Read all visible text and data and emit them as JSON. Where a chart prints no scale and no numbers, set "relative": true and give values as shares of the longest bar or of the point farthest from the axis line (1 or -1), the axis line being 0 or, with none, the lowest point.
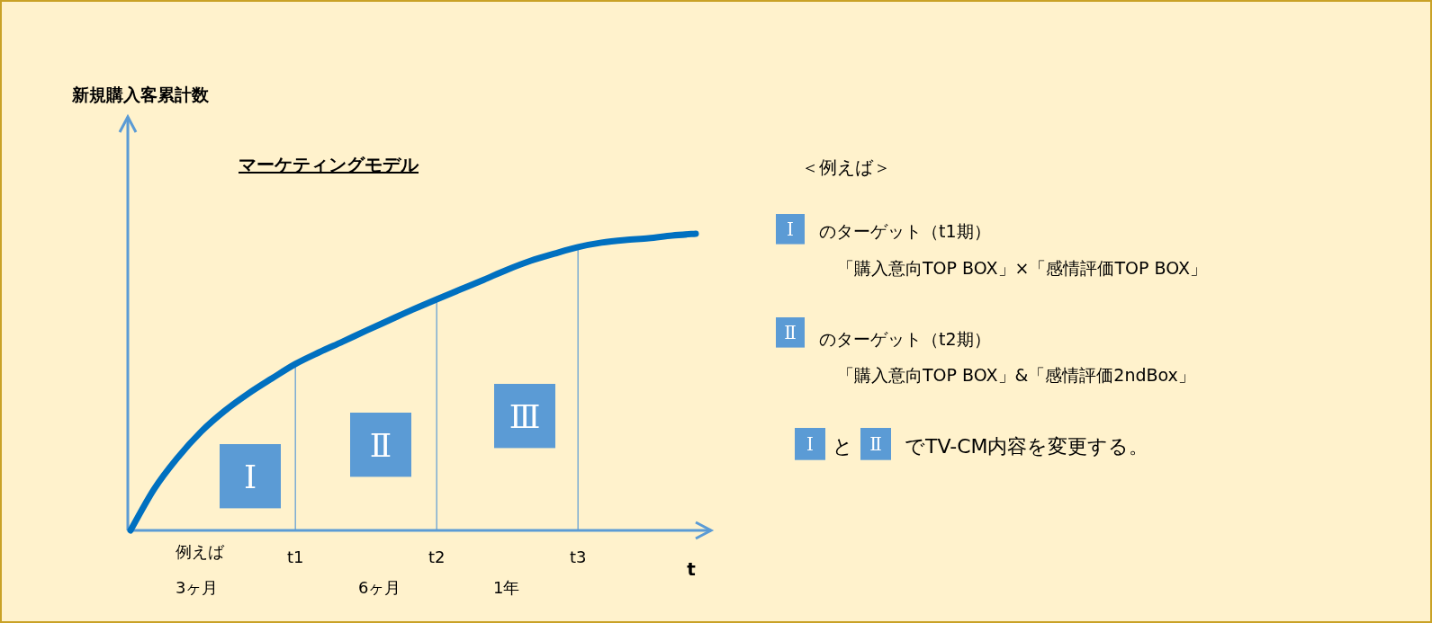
{
  "chart_data": {
    "type": "line",
    "relative": true,
    "title": "マーケティングモデル",
    "xlabel": "t",
    "categories": [
      null,
      null,
      null,
      null,
      null,
      null,
      null,
      "t1",
      null,
      null,
      null,
      null,
      null,
      "t2",
      null,
      null,
      null,
      null,
      null,
      "t3",
      null,
      null,
      null,
      null,
      null
    ],
    "series": [
      {
        "color": "#0070c0",
        "values": [
          0,
          0.139,
          0.245,
          0.333,
          0.403,
          0.461,
          0.512,
          0.561,
          0.6,
          0.636,
          0.673,
          0.709,
          0.745,
          0.779,
          0.812,
          0.845,
          0.879,
          0.909,
          0.933,
          0.955,
          0.97,
          0.979,
          0.985,
          0.994,
          1
        ]
      }
    ],
    "ref_lines": [
      {
        "axis": "x",
        "value": "t1",
        "color": "#5b9bd5"
      },
      {
        "axis": "x",
        "value": "t2",
        "color": "#5b9bd5"
      },
      {
        "axis": "x",
        "value": "t3",
        "color": "#5b9bd5"
      }
    ],
    "annotations": [
      "Ⅰ",
      "Ⅱ",
      "Ⅲ",
      "例えば",
      "3ヶ月",
      "6ヶ月",
      "1年",
      "＜例えば＞",
      "Ⅰ",
      "のターゲット（t1期）",
      "「購入意向TOP BOX」×「感情評価TOP BOX」",
      "Ⅱ",
      "のターゲット（t2期）",
      "「購入意向TOP BOX」&「感情評価2ndBox」",
      "Ⅰ",
      "と",
      "Ⅱ",
      "でTV-CM内容を変更する。",
      "新規購入客累計数"
    ]
  }
}
